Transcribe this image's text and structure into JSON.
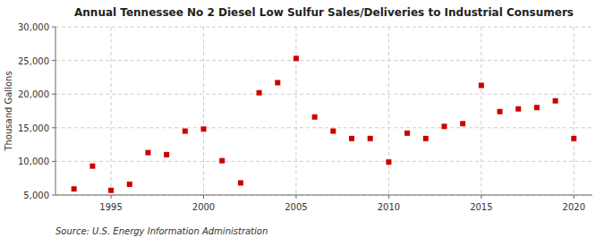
{
  "chart_data": {
    "type": "scatter",
    "title": "Annual Tennessee No 2 Diesel Low Sulfur Sales/Deliveries to Industrial Consumers",
    "y_label": "Thousand Gallons",
    "source": "Source: U.S. Energy Information Administration",
    "x": [
      1993,
      1994,
      1995,
      1996,
      1997,
      1998,
      1999,
      2000,
      2001,
      2002,
      2003,
      2004,
      2005,
      2006,
      2007,
      2008,
      2009,
      2010,
      2011,
      2012,
      2013,
      2014,
      2015,
      2016,
      2017,
      2018,
      2019,
      2020
    ],
    "values": [
      5900,
      9300,
      5700,
      6600,
      11300,
      11000,
      14500,
      14800,
      10100,
      6800,
      20200,
      21700,
      25300,
      16600,
      14500,
      13400,
      13400,
      9900,
      14200,
      13400,
      15200,
      15600,
      21300,
      17400,
      17800,
      18000,
      19000,
      13400
    ],
    "color": "#cc0000",
    "marker": "square",
    "xlim": [
      1992,
      2021
    ],
    "ylim": [
      5000,
      30000
    ],
    "xticks": [
      1995,
      2000,
      2005,
      2010,
      2015,
      2020
    ],
    "yticks": [
      {
        "value": 5000,
        "label": "5,000"
      },
      {
        "value": 10000,
        "label": "10,000"
      },
      {
        "value": 15000,
        "label": "15,000"
      },
      {
        "value": 20000,
        "label": "20,000"
      },
      {
        "value": 25000,
        "label": "25,000"
      },
      {
        "value": 30000,
        "label": "30,000"
      }
    ],
    "grid": true
  }
}
